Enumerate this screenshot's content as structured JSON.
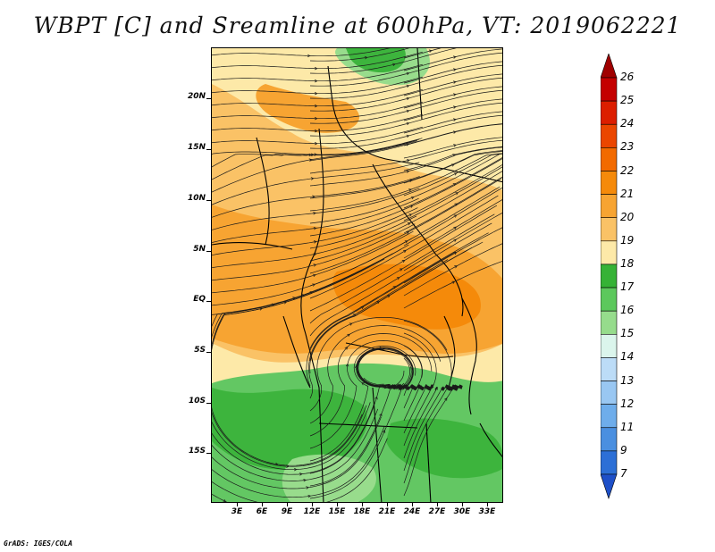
{
  "title": "WBPT [C] and Sreamline at 600hPa, VT: 2019062221",
  "credit": "GrADS: IGES/COLA",
  "map": {
    "lat_ticks": [
      "20N",
      "15N",
      "10N",
      "5N",
      "EQ",
      "5S",
      "10S",
      "15S"
    ],
    "lon_ticks": [
      "3E",
      "6E",
      "9E",
      "12E",
      "15E",
      "18E",
      "21E",
      "24E",
      "27E",
      "30E",
      "33E"
    ],
    "lat_range": [
      -20,
      24
    ],
    "lon_range": [
      0,
      35
    ]
  },
  "colorbar": {
    "labels": [
      "26",
      "25",
      "24",
      "23",
      "22",
      "21",
      "20",
      "19",
      "18",
      "17",
      "16",
      "15",
      "14",
      "13",
      "12",
      "11",
      "9",
      "7"
    ],
    "colors": [
      "#a00000",
      "#c40000",
      "#dc1e00",
      "#eb4600",
      "#f26a00",
      "#f58a0a",
      "#f7a432",
      "#fac266",
      "#fde9a8",
      "#36b236",
      "#5cc85c",
      "#96dc8c",
      "#dbf5ec",
      "#bcdcf7",
      "#99c7f2",
      "#6eadeb",
      "#4a8fe0",
      "#2c6fd6",
      "#1e50c8"
    ]
  },
  "fill_colors": {
    "green_dark": "#3db43d",
    "green_mid": "#63c763",
    "green_light": "#98dc8c",
    "tan": "#fde9a8",
    "yellow": "#fac266",
    "orange_light": "#f7a432",
    "orange": "#f58a0a"
  }
}
